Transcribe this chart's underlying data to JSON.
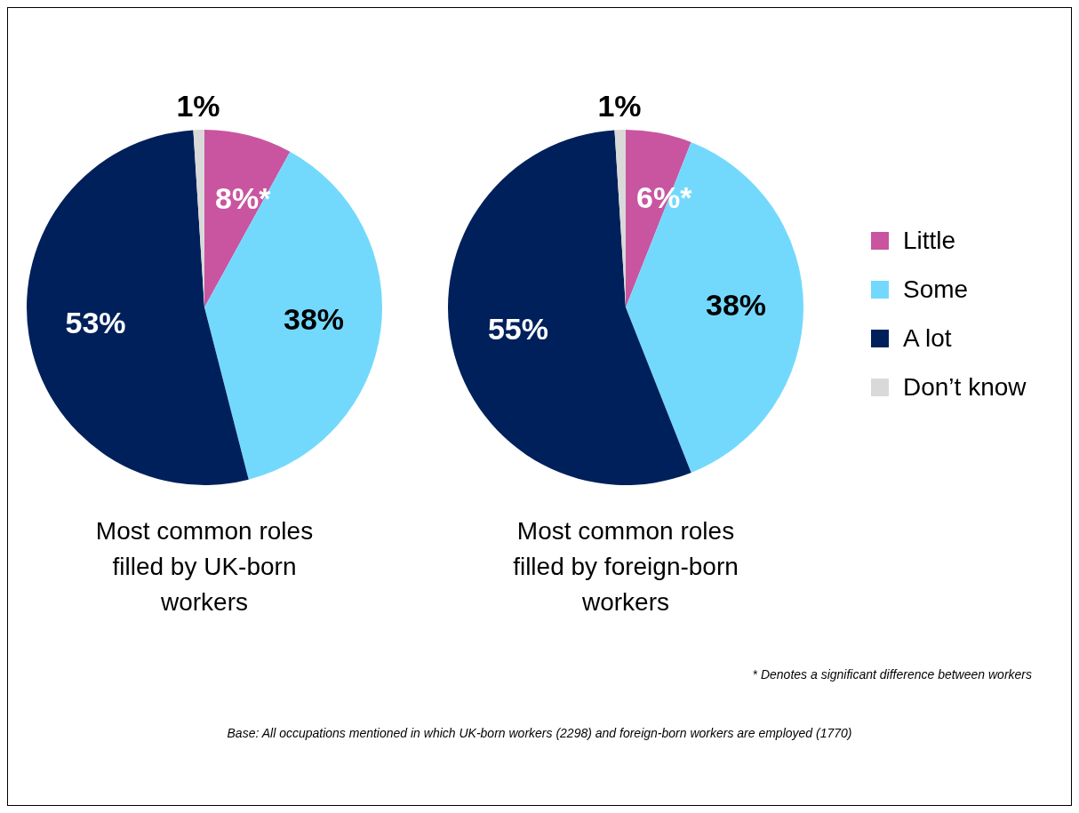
{
  "chart_data": [
    {
      "type": "pie",
      "title": "Most common roles filled by UK-born workers",
      "categories": [
        null,
        null,
        null,
        null
      ],
      "values": [
        8,
        38,
        53,
        1
      ],
      "colors": [
        "#c955a0",
        "#73d9fc",
        "#00205b",
        "#d9d9d9"
      ],
      "value_labels": [
        "8%*",
        "38%",
        "53%",
        "1%"
      ],
      "legend": false
    },
    {
      "type": "pie",
      "title": "Most common roles filled by foreign-born workers",
      "categories": [
        "Little",
        "Some",
        "A lot",
        "Don’t know"
      ],
      "values": [
        6,
        38,
        55,
        1
      ],
      "colors": [
        "#c955a0",
        "#73d9fc",
        "#00205b",
        "#d9d9d9"
      ],
      "value_labels": [
        "6%*",
        "38%",
        "55%",
        "1%"
      ],
      "legend": "right",
      "annotations": [
        "* Denotes a significant difference between workers",
        "Base: All  occupations  mentioned  in which  UK-born workers (2298) and foreign-born workers are employed (1770)"
      ]
    }
  ]
}
